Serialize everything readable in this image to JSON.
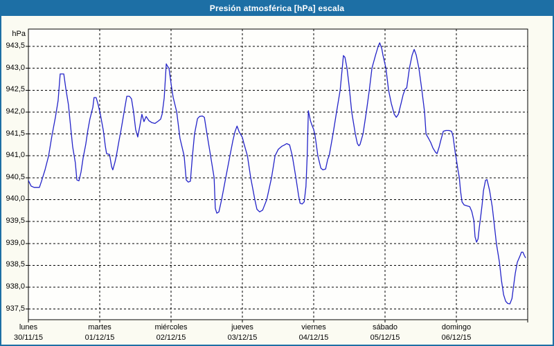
{
  "window": {
    "title": "Presión atmosférica [hPa] escala"
  },
  "colors": {
    "titlebar": "#1d6fa5",
    "frame": "#1d6fa5",
    "page_bg": "#fbfbf2",
    "plot_bg": "#fefefc",
    "grid": "#000000",
    "line": "#2222c8",
    "label_text": "#000000",
    "title_text": "#ffffff"
  },
  "chart_data": {
    "type": "line",
    "title": "Presión atmosférica [hPa] escala",
    "grid": "dashed",
    "legend": "none",
    "y_axis": {
      "unit_label": "hPa",
      "min": 937.5,
      "max": 943.5,
      "tick_step": 0.5,
      "tick_labels": [
        "943,5",
        "943,0",
        "942,5",
        "942,0",
        "941,5",
        "941,0",
        "940,5",
        "940,0",
        "939,5",
        "939,0",
        "938,5",
        "938,0",
        "937,5"
      ]
    },
    "x_axis": {
      "range_hours": [
        0,
        168
      ],
      "categories": [
        {
          "day": "lunes",
          "date": "30/11/15"
        },
        {
          "day": "martes",
          "date": "01/12/15"
        },
        {
          "day": "miércoles",
          "date": "02/12/15"
        },
        {
          "day": "jueves",
          "date": "03/12/15"
        },
        {
          "day": "viernes",
          "date": "04/12/15"
        },
        {
          "day": "sábado",
          "date": "05/12/15"
        },
        {
          "day": "domingo",
          "date": "06/12/15"
        }
      ]
    },
    "series": [
      {
        "name": "Presión atmosférica",
        "color": "#2222c8",
        "points": [
          [
            0,
            940.44
          ],
          [
            0.9,
            940.31
          ],
          [
            1.9,
            940.28
          ],
          [
            3.7,
            940.28
          ],
          [
            4.4,
            940.42
          ],
          [
            5.6,
            940.68
          ],
          [
            6.8,
            941.0
          ],
          [
            7.9,
            941.45
          ],
          [
            9.1,
            941.89
          ],
          [
            10.0,
            942.26
          ],
          [
            10.7,
            942.87
          ],
          [
            11.9,
            942.87
          ],
          [
            12.6,
            942.53
          ],
          [
            13.5,
            942.16
          ],
          [
            14.2,
            941.68
          ],
          [
            14.9,
            941.21
          ],
          [
            15.8,
            940.84
          ],
          [
            16.3,
            940.45
          ],
          [
            17.0,
            940.43
          ],
          [
            17.7,
            940.63
          ],
          [
            18.4,
            940.95
          ],
          [
            19.3,
            941.26
          ],
          [
            20.0,
            941.58
          ],
          [
            20.7,
            941.84
          ],
          [
            21.7,
            942.11
          ],
          [
            22.1,
            942.33
          ],
          [
            22.8,
            942.33
          ],
          [
            23.5,
            942.16
          ],
          [
            24.2,
            941.95
          ],
          [
            25.2,
            941.58
          ],
          [
            25.9,
            941.21
          ],
          [
            26.3,
            941.05
          ],
          [
            27.3,
            941.03
          ],
          [
            28.0,
            940.75
          ],
          [
            28.4,
            940.68
          ],
          [
            29.1,
            940.85
          ],
          [
            29.6,
            941.0
          ],
          [
            30.5,
            941.35
          ],
          [
            31.2,
            941.6
          ],
          [
            32.2,
            942.0
          ],
          [
            33.1,
            942.36
          ],
          [
            34.0,
            942.36
          ],
          [
            34.7,
            942.3
          ],
          [
            35.4,
            942.0
          ],
          [
            36.1,
            941.6
          ],
          [
            36.8,
            941.43
          ],
          [
            37.5,
            941.68
          ],
          [
            38.2,
            941.95
          ],
          [
            38.9,
            941.78
          ],
          [
            39.6,
            941.9
          ],
          [
            40.6,
            941.8
          ],
          [
            41.5,
            941.76
          ],
          [
            42.6,
            941.74
          ],
          [
            43.8,
            941.8
          ],
          [
            44.5,
            941.84
          ],
          [
            45.0,
            941.95
          ],
          [
            45.7,
            942.32
          ],
          [
            46.4,
            943.1
          ],
          [
            46.8,
            943.05
          ],
          [
            47.3,
            943.0
          ],
          [
            48.2,
            942.55
          ],
          [
            48.7,
            942.34
          ],
          [
            49.9,
            942.0
          ],
          [
            51.0,
            941.4
          ],
          [
            52.4,
            941.0
          ],
          [
            53.1,
            940.45
          ],
          [
            53.8,
            940.4
          ],
          [
            54.5,
            940.42
          ],
          [
            55.2,
            941.0
          ],
          [
            55.9,
            941.5
          ],
          [
            56.9,
            941.85
          ],
          [
            57.6,
            941.9
          ],
          [
            58.5,
            941.91
          ],
          [
            59.2,
            941.88
          ],
          [
            60.1,
            941.5
          ],
          [
            61.3,
            941.0
          ],
          [
            62.5,
            940.5
          ],
          [
            62.9,
            939.8
          ],
          [
            63.4,
            939.69
          ],
          [
            64.1,
            939.72
          ],
          [
            65.0,
            940.0
          ],
          [
            66.4,
            940.5
          ],
          [
            67.8,
            941.0
          ],
          [
            68.8,
            941.35
          ],
          [
            69.5,
            941.55
          ],
          [
            70.2,
            941.68
          ],
          [
            70.9,
            941.55
          ],
          [
            71.6,
            941.47
          ],
          [
            72.0,
            941.42
          ],
          [
            72.5,
            941.29
          ],
          [
            73.7,
            941.0
          ],
          [
            74.8,
            940.5
          ],
          [
            76.2,
            940.0
          ],
          [
            76.9,
            939.78
          ],
          [
            77.8,
            939.72
          ],
          [
            78.8,
            939.76
          ],
          [
            80.2,
            940.0
          ],
          [
            81.8,
            940.5
          ],
          [
            83.0,
            941.0
          ],
          [
            84.1,
            941.15
          ],
          [
            85.3,
            941.22
          ],
          [
            86.2,
            941.25
          ],
          [
            86.9,
            941.28
          ],
          [
            87.9,
            941.25
          ],
          [
            88.8,
            941.0
          ],
          [
            90.0,
            940.5
          ],
          [
            90.9,
            940.1
          ],
          [
            91.4,
            939.92
          ],
          [
            92.1,
            939.9
          ],
          [
            92.8,
            939.95
          ],
          [
            93.4,
            940.3
          ],
          [
            93.8,
            941.0
          ],
          [
            94.2,
            942.03
          ],
          [
            94.9,
            941.8
          ],
          [
            95.3,
            941.72
          ],
          [
            96.0,
            941.6
          ],
          [
            96.5,
            941.45
          ],
          [
            97.4,
            941.0
          ],
          [
            98.4,
            940.72
          ],
          [
            99.1,
            940.68
          ],
          [
            100.0,
            940.7
          ],
          [
            100.7,
            940.92
          ],
          [
            101.2,
            941.0
          ],
          [
            102.5,
            941.5
          ],
          [
            103.7,
            942.0
          ],
          [
            104.9,
            942.5
          ],
          [
            105.6,
            943.0
          ],
          [
            106.0,
            943.29
          ],
          [
            106.5,
            943.25
          ],
          [
            107.2,
            943.0
          ],
          [
            107.9,
            942.6
          ],
          [
            108.8,
            942.0
          ],
          [
            110.0,
            941.5
          ],
          [
            110.7,
            941.28
          ],
          [
            111.2,
            941.23
          ],
          [
            111.6,
            941.26
          ],
          [
            112.6,
            941.5
          ],
          [
            113.7,
            942.0
          ],
          [
            114.7,
            942.5
          ],
          [
            115.6,
            943.0
          ],
          [
            116.8,
            943.3
          ],
          [
            117.7,
            943.5
          ],
          [
            118.2,
            943.58
          ],
          [
            118.9,
            943.45
          ],
          [
            119.3,
            943.3
          ],
          [
            120.3,
            943.0
          ],
          [
            121.2,
            942.5
          ],
          [
            122.1,
            942.2
          ],
          [
            123.1,
            941.95
          ],
          [
            123.8,
            941.88
          ],
          [
            124.5,
            941.95
          ],
          [
            125.4,
            942.2
          ],
          [
            126.1,
            942.4
          ],
          [
            126.8,
            942.53
          ],
          [
            127.3,
            942.55
          ],
          [
            128.2,
            943.0
          ],
          [
            129.1,
            943.3
          ],
          [
            129.8,
            943.43
          ],
          [
            130.5,
            943.3
          ],
          [
            131.4,
            943.0
          ],
          [
            132.4,
            942.5
          ],
          [
            133.3,
            942.0
          ],
          [
            133.8,
            941.5
          ],
          [
            134.7,
            941.39
          ],
          [
            135.4,
            941.3
          ],
          [
            136.1,
            941.18
          ],
          [
            137.0,
            941.08
          ],
          [
            137.5,
            941.05
          ],
          [
            138.2,
            941.2
          ],
          [
            138.7,
            941.34
          ],
          [
            139.6,
            941.56
          ],
          [
            140.5,
            941.58
          ],
          [
            141.5,
            941.58
          ],
          [
            142.4,
            941.56
          ],
          [
            142.9,
            941.44
          ],
          [
            143.6,
            941.08
          ],
          [
            144.0,
            940.92
          ],
          [
            144.5,
            940.7
          ],
          [
            145.0,
            940.5
          ],
          [
            145.4,
            940.2
          ],
          [
            145.9,
            939.95
          ],
          [
            146.6,
            939.88
          ],
          [
            147.5,
            939.86
          ],
          [
            148.5,
            939.84
          ],
          [
            149.2,
            939.73
          ],
          [
            149.9,
            939.52
          ],
          [
            150.3,
            939.15
          ],
          [
            150.8,
            939.03
          ],
          [
            151.3,
            939.1
          ],
          [
            151.7,
            939.35
          ],
          [
            152.2,
            939.62
          ],
          [
            152.7,
            939.9
          ],
          [
            153.1,
            940.2
          ],
          [
            153.8,
            940.44
          ],
          [
            154.3,
            940.46
          ],
          [
            154.7,
            940.35
          ],
          [
            155.2,
            940.2
          ],
          [
            156.1,
            939.83
          ],
          [
            156.8,
            939.41
          ],
          [
            157.5,
            938.99
          ],
          [
            158.5,
            938.57
          ],
          [
            159.2,
            938.15
          ],
          [
            159.9,
            937.83
          ],
          [
            160.6,
            937.68
          ],
          [
            161.3,
            937.63
          ],
          [
            162.0,
            937.62
          ],
          [
            162.7,
            937.74
          ],
          [
            163.1,
            937.95
          ],
          [
            163.8,
            938.31
          ],
          [
            164.5,
            938.57
          ],
          [
            165.5,
            938.73
          ],
          [
            165.9,
            938.8
          ],
          [
            166.4,
            938.8
          ],
          [
            166.9,
            938.72
          ],
          [
            167.3,
            938.67
          ]
        ]
      }
    ]
  }
}
